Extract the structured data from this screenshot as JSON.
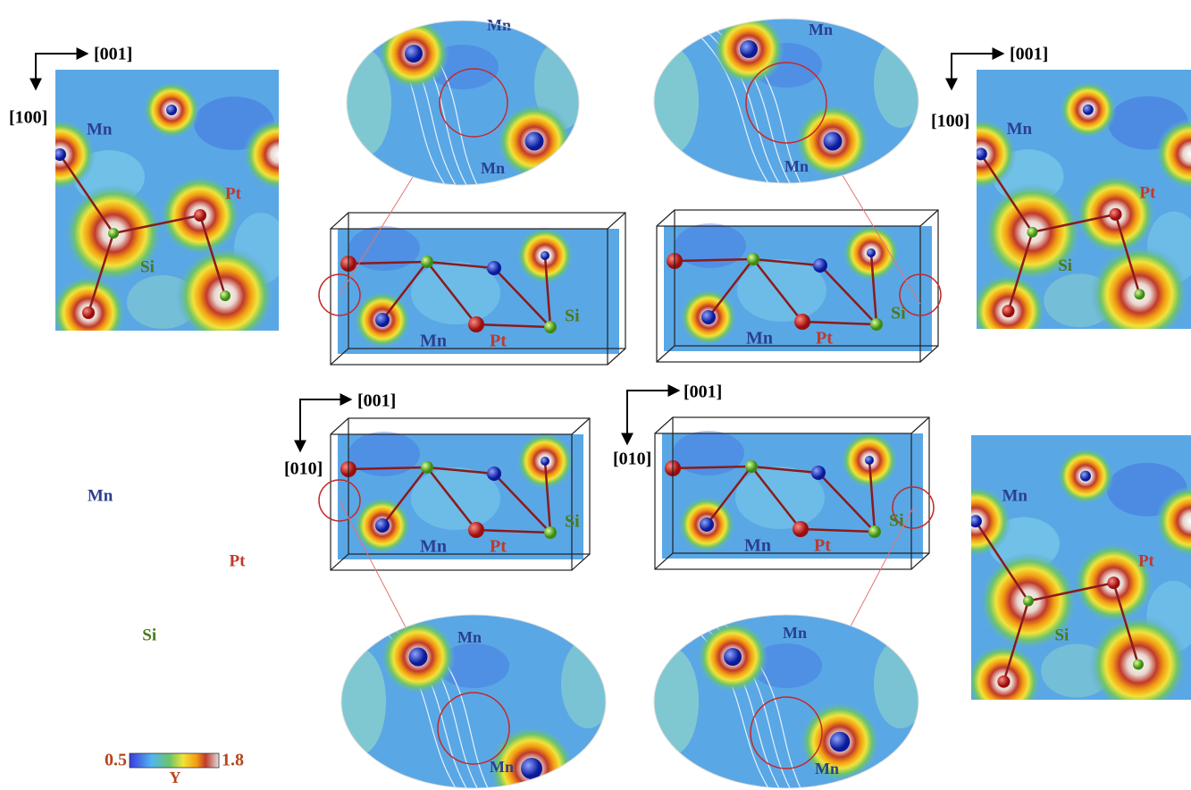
{
  "orientation": [
    {
      "right": "[001]",
      "down": "[100]"
    },
    {
      "right": "[001]",
      "down": "[100]"
    },
    {
      "right": "[001]",
      "down": "[010]"
    },
    {
      "right": "[001]",
      "down": "[010]"
    }
  ],
  "atom_labels": {
    "mn": "Mn",
    "pt": "Pt",
    "si": "Si"
  },
  "colorbar": {
    "min": 0.5,
    "max": 1.8,
    "symbol": "Υ"
  }
}
